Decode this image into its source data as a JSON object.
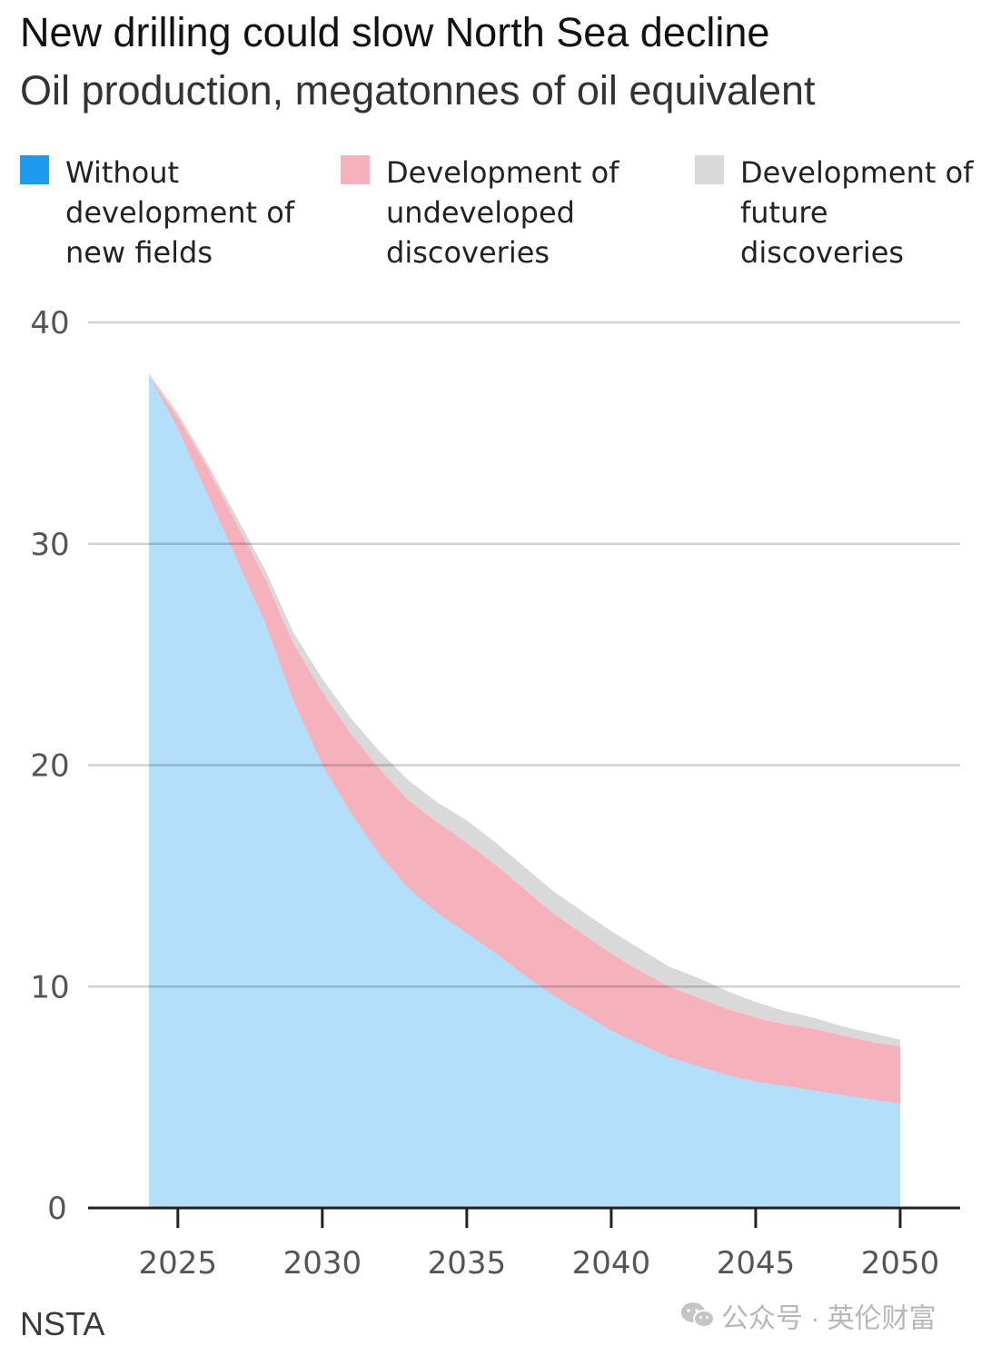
{
  "chart_data": {
    "type": "area",
    "stacked": true,
    "title": "New drilling could slow North Sea decline",
    "subtitle": "Oil production, megatonnes of oil equivalent",
    "x": [
      2024,
      2025,
      2026,
      2027,
      2028,
      2029,
      2030,
      2031,
      2032,
      2033,
      2034,
      2035,
      2036,
      2037,
      2038,
      2039,
      2040,
      2041,
      2042,
      2043,
      2044,
      2045,
      2046,
      2047,
      2048,
      2049,
      2050
    ],
    "series": [
      {
        "name": "Without development of new fields",
        "color": "#b3dffa",
        "values": [
          37.6,
          35.2,
          32.3,
          29.4,
          26.5,
          22.9,
          20.0,
          17.8,
          15.9,
          14.4,
          13.3,
          12.4,
          11.5,
          10.5,
          9.6,
          8.8,
          8.0,
          7.4,
          6.8,
          6.4,
          6.0,
          5.7,
          5.5,
          5.3,
          5.1,
          4.9,
          4.7
        ]
      },
      {
        "name": "Development of undeveloped discoveries",
        "color": "#f6b2bc",
        "values": [
          0.0,
          0.5,
          1.2,
          1.6,
          2.0,
          2.6,
          3.3,
          3.6,
          3.9,
          4.0,
          4.1,
          4.1,
          4.0,
          3.9,
          3.7,
          3.6,
          3.5,
          3.3,
          3.2,
          3.1,
          3.0,
          2.9,
          2.8,
          2.8,
          2.7,
          2.6,
          2.6
        ]
      },
      {
        "name": "Development of future discoveries",
        "color": "#d9d9d9",
        "values": [
          0.1,
          0.2,
          0.2,
          0.3,
          0.4,
          0.5,
          0.6,
          0.7,
          0.8,
          0.9,
          0.9,
          1.0,
          1.0,
          1.0,
          1.0,
          1.0,
          1.0,
          1.0,
          0.9,
          0.9,
          0.8,
          0.7,
          0.6,
          0.5,
          0.4,
          0.4,
          0.3
        ]
      }
    ],
    "ylim": [
      0,
      40
    ],
    "yticks": [
      0,
      10,
      20,
      30,
      40
    ],
    "xticks": [
      2025,
      2030,
      2035,
      2040,
      2045,
      2050
    ],
    "grid": true,
    "legend_position": "top"
  },
  "legend": {
    "item1_line1": "Without",
    "item1_line2": "development of",
    "item1_line3": "new fields",
    "item2_line1": "Development of",
    "item2_line2": "undeveloped",
    "item2_line3": "discoveries",
    "item3_line1": "Development of",
    "item3_line2": "future",
    "item3_line3": "discoveries",
    "color1": "#1e9bf0",
    "color2": "#f6b2bc",
    "color3": "#d9d9d9"
  },
  "source": "NSTA",
  "watermark": "公众号 · 英伦财富",
  "watermark_icon": "wechat-icon"
}
